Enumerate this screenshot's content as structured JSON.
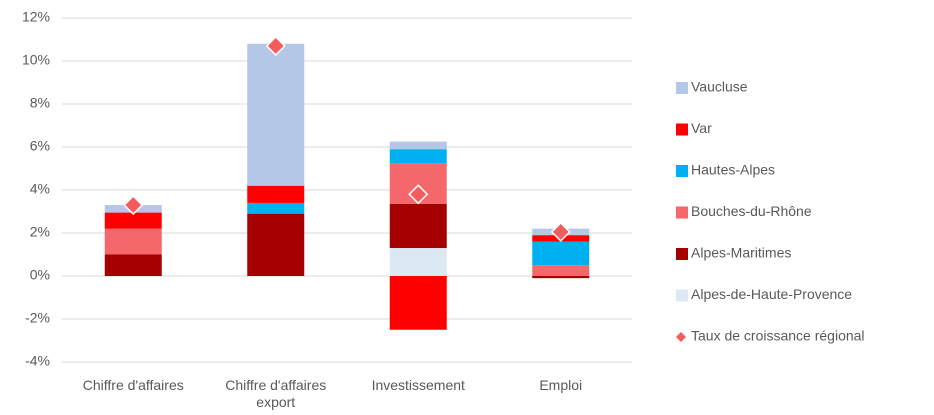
{
  "chart_data": {
    "type": "stacked_bar",
    "categories": [
      "Chiffre d'affaires",
      "Chiffre d'affaires export",
      "Investissement",
      "Emploi"
    ],
    "series": [
      {
        "name": "Alpes-de-Haute-Provence",
        "color": "#dde8f5",
        "values": [
          0,
          0,
          1.3,
          0
        ]
      },
      {
        "name": "Alpes-Maritimes",
        "color": "#a50000",
        "values": [
          1.0,
          2.9,
          2.05,
          -0.1
        ]
      },
      {
        "name": "Bouches-du-Rhône",
        "color": "#f4676a",
        "values": [
          1.2,
          0,
          1.9,
          0.5
        ]
      },
      {
        "name": "Hautes-Alpes",
        "color": "#00b0f0",
        "values": [
          0,
          0.5,
          0.65,
          1.1
        ]
      },
      {
        "name": "Var",
        "color": "#ff0000",
        "values": [
          0.75,
          0.8,
          -2.5,
          0.3
        ]
      },
      {
        "name": "Vaucluse",
        "color": "#b4c7e7",
        "values": [
          0.35,
          6.6,
          0.35,
          0.3
        ]
      }
    ],
    "markers": {
      "type": "scatter",
      "name": "Taux de croissance régional",
      "color": "#f25c5c",
      "values": [
        3.3,
        10.7,
        3.8,
        2.05
      ]
    },
    "ylim": [
      -4,
      12
    ],
    "yticks": [
      {
        "value": -4,
        "label": "-4%"
      },
      {
        "value": -2,
        "label": "-2%"
      },
      {
        "value": 0,
        "label": "0%"
      },
      {
        "value": 2,
        "label": "2%"
      },
      {
        "value": 4,
        "label": "4%"
      },
      {
        "value": 6,
        "label": "6%"
      },
      {
        "value": 8,
        "label": "8%"
      },
      {
        "value": 10,
        "label": "10%"
      },
      {
        "value": 12,
        "label": "12%"
      }
    ],
    "grid": true,
    "legend": "right"
  }
}
